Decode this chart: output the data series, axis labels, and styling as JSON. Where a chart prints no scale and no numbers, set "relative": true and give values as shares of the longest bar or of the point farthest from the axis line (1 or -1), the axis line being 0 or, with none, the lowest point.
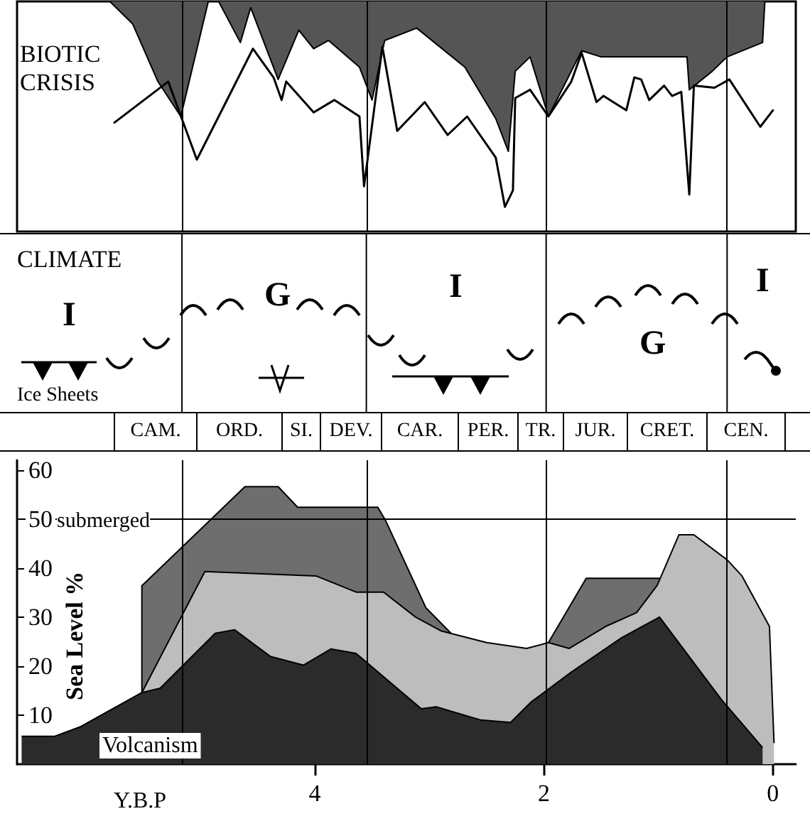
{
  "chart_data": [
    {
      "type": "area",
      "title": "BIOTIC CRISIS",
      "relative": true,
      "xlim": [
        6.6,
        -0.2
      ],
      "ref_lines": [
        {
          "axis": "x",
          "value": 5.16
        },
        {
          "axis": "x",
          "value": 3.55
        },
        {
          "axis": "x",
          "value": 1.98
        },
        {
          "axis": "x",
          "value": 0.4
        }
      ],
      "series": [
        {
          "type": "area",
          "color": "#555555",
          "x": [
            5.79,
            5.59,
            5.37,
            5.17,
            4.93,
            4.84,
            4.65,
            4.56,
            4.32,
            4.14,
            4.01,
            3.88,
            3.61,
            3.5,
            3.39,
            3.11,
            2.69,
            2.42,
            2.31,
            2.25,
            2.12,
            1.96,
            1.67,
            1.5,
            0.75,
            0.73,
            0.53,
            0.4,
            0.09,
            0.07
          ],
          "values": [
            0,
            -0.11,
            -0.39,
            -0.56,
            0,
            0,
            -0.2,
            -0.03,
            -0.38,
            -0.14,
            -0.23,
            -0.19,
            -0.32,
            -0.48,
            -0.19,
            -0.13,
            -0.32,
            -0.57,
            -0.73,
            -0.34,
            -0.27,
            -0.56,
            -0.24,
            -0.27,
            -0.27,
            -0.43,
            -0.34,
            -0.27,
            -0.2,
            0
          ]
        },
        {
          "type": "line",
          "color": "#000000",
          "x": [
            5.75,
            5.28,
            5.03,
            4.54,
            4.36,
            4.29,
            4.25,
            4.01,
            3.83,
            3.61,
            3.57,
            3.41,
            3.28,
            3.04,
            2.84,
            2.67,
            2.42,
            2.34,
            2.27,
            2.25,
            2.12,
            1.96,
            1.76,
            1.67,
            1.54,
            1.48,
            1.28,
            1.21,
            1.15,
            1.08,
            0.95,
            0.88,
            0.8,
            0.73,
            0.69,
            0.51,
            0.38,
            0.11,
            0.0
          ],
          "values": [
            -0.59,
            -0.39,
            -0.77,
            -0.23,
            -0.37,
            -0.48,
            -0.39,
            -0.54,
            -0.48,
            -0.56,
            -0.9,
            -0.22,
            -0.63,
            -0.49,
            -0.65,
            -0.56,
            -0.76,
            -1.0,
            -0.92,
            -0.47,
            -0.43,
            -0.56,
            -0.39,
            -0.25,
            -0.49,
            -0.46,
            -0.53,
            -0.37,
            -0.38,
            -0.48,
            -0.41,
            -0.46,
            -0.44,
            -0.94,
            -0.41,
            -0.42,
            -0.38,
            -0.61,
            -0.53
          ]
        }
      ]
    },
    {
      "type": "other",
      "title": "CLIMATE",
      "annotations": [
        "I",
        "G",
        "I",
        "G",
        "I",
        "Ice Sheets"
      ]
    },
    {
      "type": "other",
      "categories": [
        "CAM.",
        "ORD.",
        "SI.",
        "DEV.",
        "CAR.",
        "PER.",
        "TR.",
        "JUR.",
        "CRET.",
        "CEN."
      ]
    },
    {
      "type": "area",
      "xlabel": "Y.B.P",
      "ylabel": "Sea Level %",
      "xlim": [
        6.6,
        -0.2
      ],
      "ylim": [
        0,
        62
      ],
      "xticks": [
        4,
        2,
        0
      ],
      "yticks": [
        10,
        20,
        30,
        40,
        50,
        60
      ],
      "ref_lines": [
        {
          "axis": "y",
          "value": 50,
          "label": "submerged"
        },
        {
          "axis": "x",
          "value": 5.16
        },
        {
          "axis": "x",
          "value": 3.55
        },
        {
          "axis": "x",
          "value": 1.98
        },
        {
          "axis": "x",
          "value": 0.4
        }
      ],
      "series": [
        {
          "color": "#6e6e6e",
          "x": [
            5.51,
            5.51,
            4.61,
            4.32,
            4.15,
            3.45,
            3.38,
            3.03,
            2.81,
            2.4,
            1.96,
            1.63,
            0.99,
            0.97
          ],
          "values": [
            14.6,
            36.4,
            56.6,
            56.6,
            52.4,
            52.4,
            49.6,
            31.9,
            26.7,
            null,
            24.8,
            37.9,
            37.9,
            36.0
          ]
        },
        {
          "color": "#bdbdbd",
          "x": [
            5.51,
            4.96,
            3.99,
            3.64,
            3.4,
            3.12,
            2.9,
            2.5,
            2.15,
            1.96,
            1.78,
            1.46,
            1.19,
            1.01,
            0.82,
            0.69,
            0.4,
            0.27,
            0.03,
            -0.01
          ],
          "values": [
            14.6,
            39.3,
            38.4,
            35.1,
            35.1,
            30.0,
            27.2,
            24.8,
            23.6,
            24.8,
            23.6,
            28.1,
            30.9,
            36.5,
            46.8,
            46.8,
            41.7,
            38.4,
            28.1,
            4.3
          ]
        },
        {
          "name": "Volcanism",
          "color": "#2b2b2b",
          "x": [
            6.56,
            6.27,
            6.05,
            5.51,
            5.35,
            4.87,
            4.7,
            4.39,
            4.1,
            3.86,
            3.64,
            3.07,
            2.94,
            2.55,
            2.29,
            2.11,
            1.76,
            1.32,
            0.99,
            0.45,
            0.09
          ],
          "values": [
            5.7,
            5.7,
            7.6,
            14.6,
            15.5,
            26.7,
            27.4,
            22.0,
            20.2,
            23.5,
            22.6,
            11.3,
            11.7,
            9.0,
            8.5,
            12.7,
            18.8,
            25.8,
            30.0,
            13.2,
            3.4
          ]
        }
      ]
    }
  ]
}
